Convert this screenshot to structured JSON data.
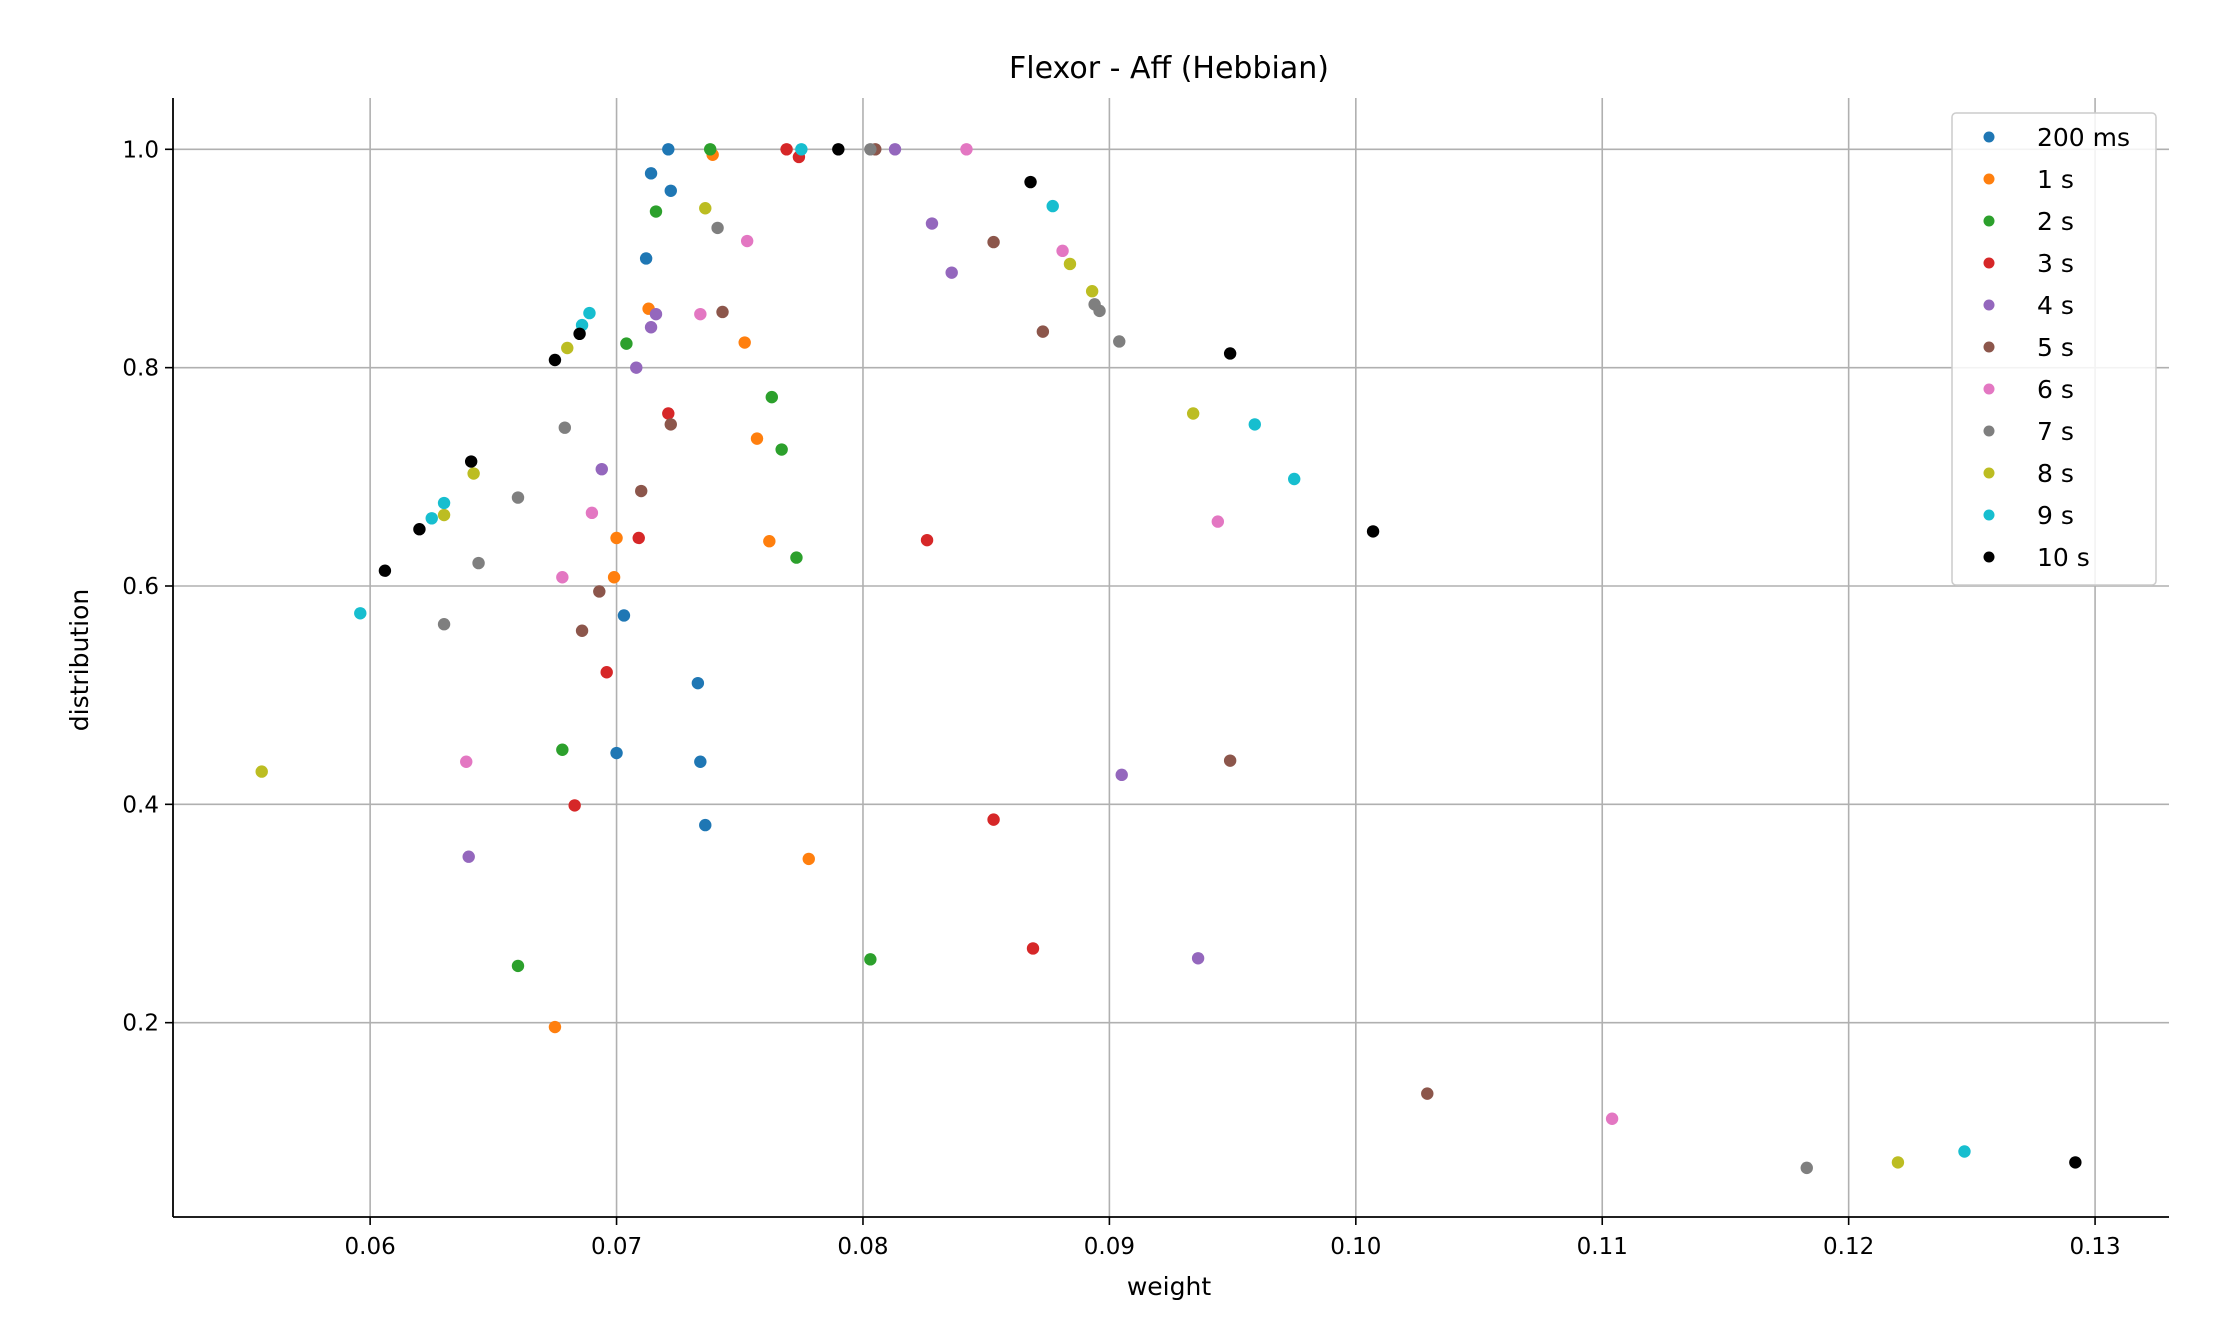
{
  "chart_data": {
    "type": "scatter",
    "title": "Flexor - Aff (Hebbian)",
    "xlabel": "weight",
    "ylabel": "distribution",
    "xlim": [
      0.052,
      0.133
    ],
    "ylim": [
      0.022,
      1.047
    ],
    "xticks": [
      0.06,
      0.07,
      0.08,
      0.09,
      0.1,
      0.11,
      0.12,
      0.13
    ],
    "xtick_labels": [
      "0.06",
      "0.07",
      "0.08",
      "0.09",
      "0.10",
      "0.11",
      "0.12",
      "0.13"
    ],
    "yticks": [
      0.2,
      0.4,
      0.6,
      0.8,
      1.0
    ],
    "ytick_labels": [
      "0.2",
      "0.4",
      "0.6",
      "0.8",
      "1.0"
    ],
    "grid": true,
    "legend_position": "top-right",
    "series": [
      {
        "name": "200 ms",
        "color": "#1f77b4",
        "points": [
          [
            0.0721,
            1.0
          ],
          [
            0.0714,
            0.978
          ],
          [
            0.0722,
            0.962
          ],
          [
            0.0712,
            0.9
          ],
          [
            0.0703,
            0.573
          ],
          [
            0.0733,
            0.511
          ],
          [
            0.07,
            0.447
          ],
          [
            0.0734,
            0.439
          ],
          [
            0.0736,
            0.381
          ]
        ]
      },
      {
        "name": "1 s",
        "color": "#ff7f0e",
        "points": [
          [
            0.0739,
            0.995
          ],
          [
            0.0713,
            0.854
          ],
          [
            0.0752,
            0.823
          ],
          [
            0.0757,
            0.735
          ],
          [
            0.07,
            0.644
          ],
          [
            0.0762,
            0.641
          ],
          [
            0.0699,
            0.608
          ],
          [
            0.0778,
            0.35
          ],
          [
            0.0675,
            0.196
          ]
        ]
      },
      {
        "name": "2 s",
        "color": "#2ca02c",
        "points": [
          [
            0.0738,
            1.0
          ],
          [
            0.0716,
            0.943
          ],
          [
            0.0704,
            0.822
          ],
          [
            0.0763,
            0.773
          ],
          [
            0.0767,
            0.725
          ],
          [
            0.0773,
            0.626
          ],
          [
            0.0678,
            0.45
          ],
          [
            0.066,
            0.252
          ],
          [
            0.0803,
            0.258
          ]
        ]
      },
      {
        "name": "3 s",
        "color": "#d62728",
        "points": [
          [
            0.0769,
            1.0
          ],
          [
            0.0774,
            0.993
          ],
          [
            0.0721,
            0.758
          ],
          [
            0.0709,
            0.644
          ],
          [
            0.0826,
            0.642
          ],
          [
            0.0696,
            0.521
          ],
          [
            0.0683,
            0.399
          ],
          [
            0.0853,
            0.386
          ],
          [
            0.0869,
            0.268
          ]
        ]
      },
      {
        "name": "4 s",
        "color": "#9467bd",
        "points": [
          [
            0.0813,
            1.0
          ],
          [
            0.0828,
            0.932
          ],
          [
            0.0836,
            0.887
          ],
          [
            0.0716,
            0.849
          ],
          [
            0.0714,
            0.837
          ],
          [
            0.0708,
            0.8
          ],
          [
            0.0694,
            0.707
          ],
          [
            0.0905,
            0.427
          ],
          [
            0.064,
            0.352
          ],
          [
            0.0936,
            0.259
          ]
        ]
      },
      {
        "name": "5 s",
        "color": "#8c564b",
        "points": [
          [
            0.0805,
            1.0
          ],
          [
            0.0853,
            0.915
          ],
          [
            0.0743,
            0.851
          ],
          [
            0.0873,
            0.833
          ],
          [
            0.0722,
            0.748
          ],
          [
            0.071,
            0.687
          ],
          [
            0.0693,
            0.595
          ],
          [
            0.0686,
            0.559
          ],
          [
            0.0949,
            0.44
          ],
          [
            0.1029,
            0.135
          ]
        ]
      },
      {
        "name": "6 s",
        "color": "#e377c2",
        "points": [
          [
            0.0842,
            1.0
          ],
          [
            0.0753,
            0.916
          ],
          [
            0.0881,
            0.907
          ],
          [
            0.0734,
            0.849
          ],
          [
            0.069,
            0.667
          ],
          [
            0.0944,
            0.659
          ],
          [
            0.0678,
            0.608
          ],
          [
            0.0639,
            0.439
          ],
          [
            0.1104,
            0.112
          ]
        ]
      },
      {
        "name": "7 s",
        "color": "#7f7f7f",
        "points": [
          [
            0.0803,
            1.0
          ],
          [
            0.0741,
            0.928
          ],
          [
            0.0896,
            0.852
          ],
          [
            0.0894,
            0.858
          ],
          [
            0.0904,
            0.824
          ],
          [
            0.0679,
            0.745
          ],
          [
            0.066,
            0.681
          ],
          [
            0.0644,
            0.621
          ],
          [
            0.063,
            0.565
          ],
          [
            0.1183,
            0.067
          ]
        ]
      },
      {
        "name": "8 s",
        "color": "#bcbd22",
        "points": [
          [
            0.0736,
            0.946
          ],
          [
            0.0884,
            0.895
          ],
          [
            0.0893,
            0.87
          ],
          [
            0.068,
            0.818
          ],
          [
            0.0934,
            0.758
          ],
          [
            0.0642,
            0.703
          ],
          [
            0.063,
            0.665
          ],
          [
            0.0556,
            0.43
          ],
          [
            0.122,
            0.072
          ]
        ]
      },
      {
        "name": "9 s",
        "color": "#17becf",
        "points": [
          [
            0.0775,
            1.0
          ],
          [
            0.0877,
            0.948
          ],
          [
            0.0689,
            0.85
          ],
          [
            0.0686,
            0.839
          ],
          [
            0.0959,
            0.748
          ],
          [
            0.0975,
            0.698
          ],
          [
            0.063,
            0.676
          ],
          [
            0.0625,
            0.662
          ],
          [
            0.0596,
            0.575
          ],
          [
            0.1247,
            0.082
          ]
        ]
      },
      {
        "name": "10 s",
        "color": "#000000",
        "points": [
          [
            0.079,
            1.0
          ],
          [
            0.0868,
            0.97
          ],
          [
            0.0949,
            0.813
          ],
          [
            0.0685,
            0.831
          ],
          [
            0.0675,
            0.807
          ],
          [
            0.0641,
            0.714
          ],
          [
            0.1007,
            0.65
          ],
          [
            0.062,
            0.652
          ],
          [
            0.0606,
            0.614
          ],
          [
            0.1292,
            0.072
          ]
        ]
      }
    ]
  }
}
